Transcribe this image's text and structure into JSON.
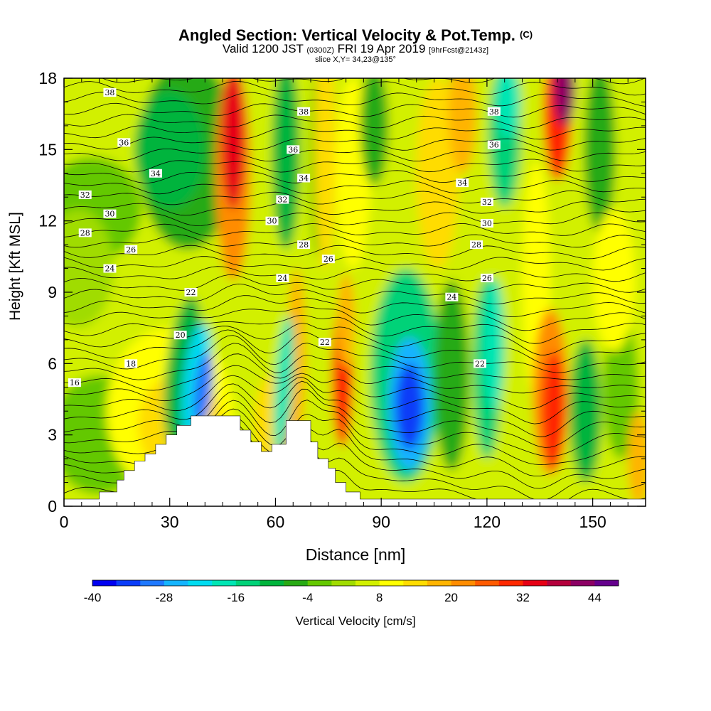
{
  "chart_data": {
    "type": "heatmap",
    "title": "Angled Section: Vertical Velocity & Pot.Temp.",
    "title_suffix": "(C)",
    "subtitle_parts": [
      "Valid 1200 JST",
      "(0300Z)",
      "FRI 19 Apr 2019",
      "[9hrFcst@2143z]"
    ],
    "subtitle2": "slice X,Y= 34,23@135°",
    "xlabel": "Distance [nm]",
    "ylabel": "Height [Kft MSL]",
    "xlim": [
      0,
      165
    ],
    "ylim": [
      0,
      18
    ],
    "x_ticks": [
      "0",
      "30",
      "60",
      "90",
      "120",
      "150"
    ],
    "y_ticks": [
      "0",
      "3",
      "6",
      "9",
      "12",
      "15",
      "18"
    ],
    "colorbar_label": "Vertical Velocity [cm/s]",
    "colorbar_ticks": [
      "-40",
      "-28",
      "-16",
      "-4",
      "8",
      "20",
      "32",
      "44"
    ],
    "colorbar_min": -40,
    "colorbar_step": 4,
    "colorbar_colors": [
      "#0000f0",
      "#0a3cf8",
      "#1e78ff",
      "#14b4ff",
      "#00dcf0",
      "#00e6b4",
      "#00d278",
      "#00b43c",
      "#28aa14",
      "#64c800",
      "#a0dc00",
      "#d2f000",
      "#ffff00",
      "#ffdc00",
      "#ffb400",
      "#ff8c00",
      "#ff5a00",
      "#ff2800",
      "#e60014",
      "#b4003c",
      "#8c0064",
      "#64008c"
    ],
    "theta_contour_labels": [
      {
        "x": 13,
        "y": 17.4,
        "label": "38"
      },
      {
        "x": 17,
        "y": 15.3,
        "label": "36"
      },
      {
        "x": 26,
        "y": 14.0,
        "label": "34"
      },
      {
        "x": 6,
        "y": 13.1,
        "label": "32"
      },
      {
        "x": 13,
        "y": 12.3,
        "label": "30"
      },
      {
        "x": 6,
        "y": 11.5,
        "label": "28"
      },
      {
        "x": 19,
        "y": 10.8,
        "label": "26"
      },
      {
        "x": 13,
        "y": 10.0,
        "label": "24"
      },
      {
        "x": 36,
        "y": 9.0,
        "label": "22"
      },
      {
        "x": 33,
        "y": 7.2,
        "label": "20"
      },
      {
        "x": 19,
        "y": 6.0,
        "label": "18"
      },
      {
        "x": 3,
        "y": 5.2,
        "label": "16"
      },
      {
        "x": 68,
        "y": 16.6,
        "label": "38"
      },
      {
        "x": 65,
        "y": 15.0,
        "label": "36"
      },
      {
        "x": 68,
        "y": 13.8,
        "label": "34"
      },
      {
        "x": 62,
        "y": 12.9,
        "label": "32"
      },
      {
        "x": 59,
        "y": 12.0,
        "label": "30"
      },
      {
        "x": 68,
        "y": 11.0,
        "label": "28"
      },
      {
        "x": 75,
        "y": 10.4,
        "label": "26"
      },
      {
        "x": 62,
        "y": 9.6,
        "label": "24"
      },
      {
        "x": 74,
        "y": 6.9,
        "label": "22"
      },
      {
        "x": 122,
        "y": 16.6,
        "label": "38"
      },
      {
        "x": 122,
        "y": 15.2,
        "label": "36"
      },
      {
        "x": 113,
        "y": 13.6,
        "label": "34"
      },
      {
        "x": 120,
        "y": 12.8,
        "label": "32"
      },
      {
        "x": 120,
        "y": 11.9,
        "label": "30"
      },
      {
        "x": 117,
        "y": 11.0,
        "label": "28"
      },
      {
        "x": 120,
        "y": 9.6,
        "label": "26"
      },
      {
        "x": 110,
        "y": 8.8,
        "label": "24"
      },
      {
        "x": 118,
        "y": 6.0,
        "label": "22"
      }
    ]
  }
}
